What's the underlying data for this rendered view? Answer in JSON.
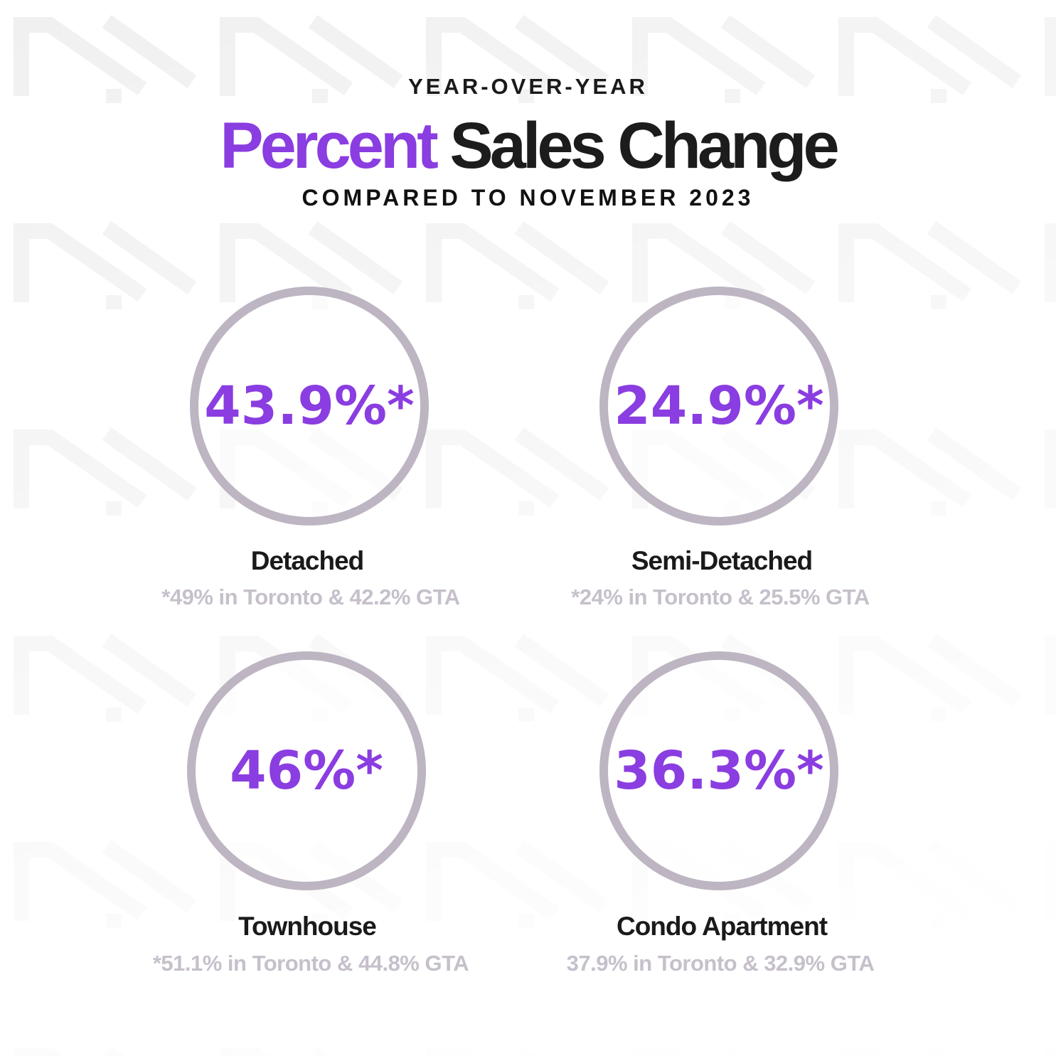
{
  "header": {
    "kicker": "YEAR-OVER-YEAR",
    "title_accent": "Percent",
    "title_rest": "Sales Change",
    "subtitle": "COMPARED TO NOVEMBER 2023"
  },
  "colors": {
    "accent": "#8a3de0",
    "ring": "#bdb5c2",
    "note": "#c6c0cb",
    "text": "#1a1a1a"
  },
  "stats": [
    {
      "value": "43.9%*",
      "label": "Detached",
      "note": "*49% in Toronto & 42.2% GTA"
    },
    {
      "value": "24.9%*",
      "label": "Semi-Detached",
      "note": "*24% in Toronto & 25.5% GTA"
    },
    {
      "value": "46%*",
      "label": "Townhouse",
      "note": "*51.1% in Toronto &  44.8% GTA"
    },
    {
      "value": "36.3%*",
      "label": "Condo Apartment",
      "note": "37.9% in Toronto & 32.9% GTA"
    }
  ]
}
